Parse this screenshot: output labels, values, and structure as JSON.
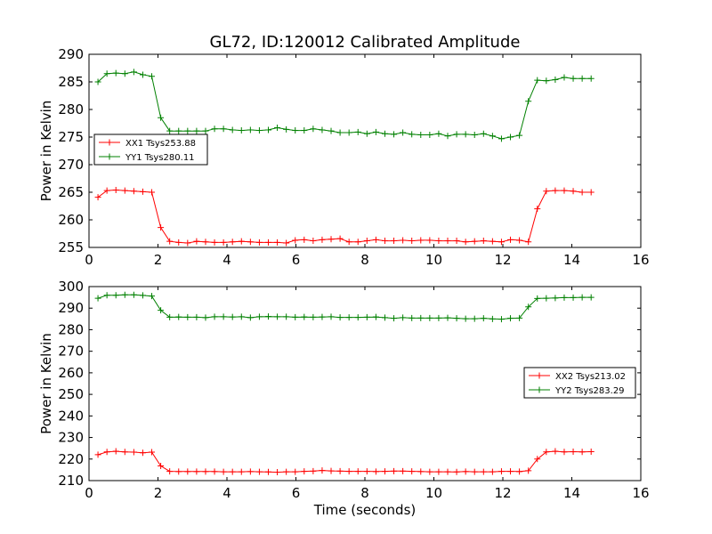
{
  "figure": {
    "title": "GL72, ID:120012 Calibrated Amplitude",
    "xlabel": "Time (seconds)"
  },
  "chart_data": [
    {
      "type": "line",
      "title": "GL72, ID:120012 Calibrated Amplitude",
      "xlabel": "",
      "ylabel": "Power in Kelvin",
      "xlim": [
        0,
        16
      ],
      "ylim": [
        255,
        290
      ],
      "xticks": [
        0,
        2,
        4,
        6,
        8,
        10,
        12,
        14,
        16
      ],
      "yticks": [
        255,
        260,
        265,
        270,
        275,
        280,
        285,
        290
      ],
      "legend_position": "center-left",
      "grid": false,
      "x": [
        0.26,
        0.52,
        0.78,
        1.04,
        1.3,
        1.56,
        1.82,
        2.08,
        2.34,
        2.6,
        2.86,
        3.12,
        3.38,
        3.64,
        3.9,
        4.16,
        4.42,
        4.68,
        4.94,
        5.2,
        5.46,
        5.72,
        5.98,
        6.24,
        6.5,
        6.76,
        7.02,
        7.28,
        7.54,
        7.8,
        8.06,
        8.32,
        8.58,
        8.84,
        9.1,
        9.36,
        9.62,
        9.88,
        10.14,
        10.4,
        10.66,
        10.92,
        11.18,
        11.44,
        11.7,
        11.96,
        12.22,
        12.48,
        12.74,
        13.0,
        13.26,
        13.52,
        13.78,
        14.04,
        14.3,
        14.56
      ],
      "series": [
        {
          "name": "XX1 Tsys253.88",
          "color": "#ff0000",
          "values": [
            264.1,
            265.3,
            265.4,
            265.3,
            265.2,
            265.1,
            265.0,
            258.6,
            256.1,
            255.9,
            255.8,
            256.1,
            256.0,
            255.9,
            255.9,
            256.0,
            256.1,
            256.0,
            255.9,
            255.9,
            255.9,
            255.8,
            256.3,
            256.4,
            256.2,
            256.4,
            256.5,
            256.6,
            256.0,
            256.0,
            256.2,
            256.4,
            256.2,
            256.2,
            256.3,
            256.2,
            256.3,
            256.3,
            256.2,
            256.2,
            256.2,
            256.0,
            256.1,
            256.2,
            256.1,
            256.0,
            256.4,
            256.3,
            256.0,
            262.0,
            265.2,
            265.3,
            265.3,
            265.2,
            265.0,
            265.0
          ]
        },
        {
          "name": "YY1 Tsys280.11",
          "color": "#008000",
          "values": [
            285.0,
            286.5,
            286.6,
            286.5,
            286.8,
            286.3,
            286.0,
            278.5,
            276.1,
            276.1,
            276.1,
            276.1,
            276.1,
            276.5,
            276.5,
            276.3,
            276.2,
            276.3,
            276.2,
            276.3,
            276.7,
            276.4,
            276.2,
            276.2,
            276.5,
            276.3,
            276.1,
            275.8,
            275.8,
            275.9,
            275.6,
            275.9,
            275.6,
            275.5,
            275.8,
            275.5,
            275.4,
            275.4,
            275.6,
            275.2,
            275.5,
            275.5,
            275.4,
            275.6,
            275.2,
            274.7,
            275.0,
            275.3,
            281.5,
            285.3,
            285.2,
            285.4,
            285.8,
            285.6,
            285.6,
            285.6
          ]
        }
      ]
    },
    {
      "type": "line",
      "title": "",
      "xlabel": "Time (seconds)",
      "ylabel": "Power in Kelvin",
      "xlim": [
        0,
        16
      ],
      "ylim": [
        210,
        300
      ],
      "xticks": [
        0,
        2,
        4,
        6,
        8,
        10,
        12,
        14,
        16
      ],
      "yticks": [
        210,
        220,
        230,
        240,
        250,
        260,
        270,
        280,
        290,
        300
      ],
      "legend_position": "center-right",
      "grid": false,
      "x": [
        0.26,
        0.52,
        0.78,
        1.04,
        1.3,
        1.56,
        1.82,
        2.08,
        2.34,
        2.6,
        2.86,
        3.12,
        3.38,
        3.64,
        3.9,
        4.16,
        4.42,
        4.68,
        4.94,
        5.2,
        5.46,
        5.72,
        5.98,
        6.24,
        6.5,
        6.76,
        7.02,
        7.28,
        7.54,
        7.8,
        8.06,
        8.32,
        8.58,
        8.84,
        9.1,
        9.36,
        9.62,
        9.88,
        10.14,
        10.4,
        10.66,
        10.92,
        11.18,
        11.44,
        11.7,
        11.96,
        12.22,
        12.48,
        12.74,
        13.0,
        13.26,
        13.52,
        13.78,
        14.04,
        14.3,
        14.56
      ],
      "series": [
        {
          "name": "XX2 Tsys213.02",
          "color": "#ff0000",
          "values": [
            222.0,
            223.3,
            223.6,
            223.3,
            223.2,
            222.9,
            223.2,
            216.8,
            214.3,
            214.2,
            214.2,
            214.2,
            214.2,
            214.2,
            214.1,
            214.1,
            214.1,
            214.2,
            214.1,
            214.0,
            213.9,
            214.1,
            214.1,
            214.3,
            214.4,
            214.7,
            214.5,
            214.4,
            214.3,
            214.3,
            214.3,
            214.2,
            214.3,
            214.4,
            214.4,
            214.3,
            214.2,
            214.1,
            214.1,
            214.1,
            214.0,
            214.2,
            214.1,
            214.1,
            214.1,
            214.3,
            214.3,
            214.2,
            214.6,
            220.0,
            223.3,
            223.6,
            223.3,
            223.4,
            223.3,
            223.4
          ]
        },
        {
          "name": "YY2 Tsys283.29",
          "color": "#008000",
          "values": [
            294.6,
            296.0,
            296.0,
            296.2,
            296.2,
            295.9,
            295.6,
            289.0,
            285.8,
            285.9,
            285.8,
            285.8,
            285.6,
            286.0,
            286.0,
            285.9,
            286.0,
            285.6,
            286.0,
            286.1,
            286.0,
            286.0,
            285.8,
            285.9,
            285.8,
            285.9,
            286.0,
            285.7,
            285.7,
            285.7,
            285.8,
            285.9,
            285.6,
            285.3,
            285.6,
            285.4,
            285.4,
            285.4,
            285.4,
            285.5,
            285.3,
            285.1,
            285.1,
            285.3,
            285.0,
            284.9,
            285.3,
            285.4,
            290.6,
            294.5,
            294.6,
            294.7,
            294.9,
            294.9,
            295.0,
            295.0
          ]
        }
      ]
    }
  ]
}
